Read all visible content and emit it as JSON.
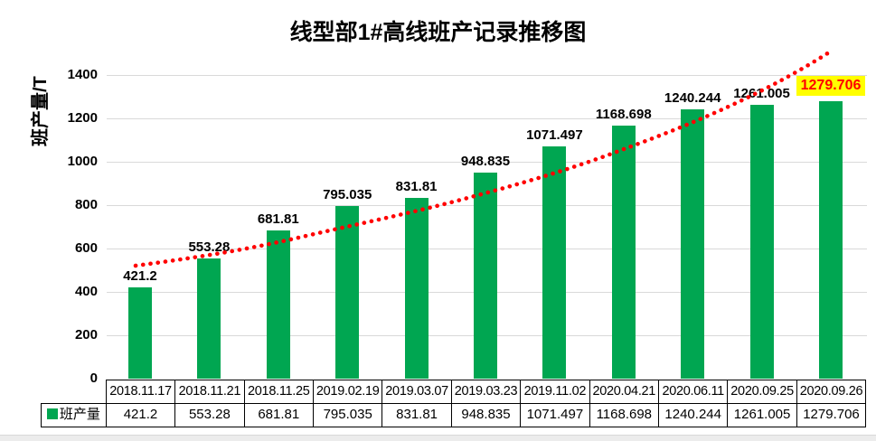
{
  "title": "线型部1#高线班产记录推移图",
  "y_axis_title": "班产量/T",
  "colors": {
    "bar": "#00A651",
    "trendline": "#FF0000",
    "highlight_bg": "#FFFF00",
    "highlight_text": "#FF0000",
    "gridline": "#D9D9D9",
    "table_border": "#000000"
  },
  "chart_data": {
    "type": "bar",
    "title": "线型部1#高线班产记录推移图",
    "ylabel": "班产量/T",
    "xlabel": "",
    "categories": [
      "2018.11.17",
      "2018.11.21",
      "2018.11.25",
      "2019.02.19",
      "2019.03.07",
      "2019.03.23",
      "2019.11.02",
      "2020.04.21",
      "2020.06.11",
      "2020.09.25",
      "2020.09.26"
    ],
    "series": [
      {
        "name": "班产量",
        "values": [
          421.2,
          553.28,
          681.81,
          795.035,
          831.81,
          948.835,
          1071.497,
          1168.698,
          1240.244,
          1261.005,
          1279.706
        ]
      }
    ],
    "value_labels": [
      "421.2",
      "553.28",
      "681.81",
      "795.035",
      "831.81",
      "948.835",
      "1071.497",
      "1168.698",
      "1240.244",
      "1261.005",
      "1279.706"
    ],
    "ylim": [
      0,
      1400
    ],
    "ytick_interval": 200,
    "yticks": [
      "0",
      "200",
      "400",
      "600",
      "800",
      "1000",
      "1200",
      "1400"
    ],
    "grid": true,
    "legend_position": "data-table-left",
    "has_trendline": true,
    "trendline_style": "dotted-red",
    "highlighted_index": 10,
    "data_table_shown": true
  }
}
